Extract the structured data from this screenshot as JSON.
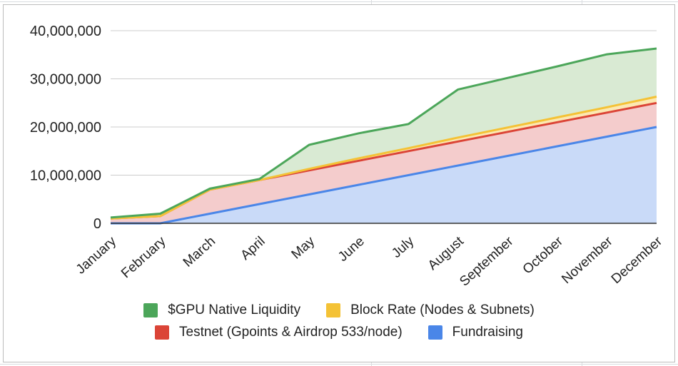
{
  "chart_data": {
    "type": "area",
    "stacked": true,
    "categories": [
      "January",
      "February",
      "March",
      "April",
      "May",
      "June",
      "July",
      "August",
      "September",
      "October",
      "November",
      "December"
    ],
    "yticks": [
      "0",
      "10,000,000",
      "20,000,000",
      "30,000,000",
      "40,000,000"
    ],
    "ylim": [
      0,
      40000000
    ],
    "grid": true,
    "legend_position": "bottom",
    "series": [
      {
        "name": "Fundraising",
        "color": "#4a86e8",
        "fill": "#c9daf8",
        "values": [
          0,
          0,
          2000000,
          4000000,
          6000000,
          8000000,
          10000000,
          12000000,
          14000000,
          16000000,
          18000000,
          20000000
        ]
      },
      {
        "name": "Testnet (Gpoints & Airdrop 533/node)",
        "color": "#db4437",
        "fill": "#f4cccc",
        "values": [
          1000000,
          1500000,
          5000000,
          5000000,
          5000000,
          5000000,
          5000000,
          5000000,
          5000000,
          5000000,
          5000000,
          5000000
        ]
      },
      {
        "name": "Block Rate (Nodes & Subnets)",
        "color": "#f4c236",
        "fill": "#fce8b2",
        "values": [
          0,
          0,
          0,
          0,
          300000,
          500000,
          600000,
          800000,
          900000,
          1000000,
          1100000,
          1300000
        ]
      },
      {
        "name": "$GPU Native Liquidity",
        "color": "#4ca65a",
        "fill": "#d9ead3",
        "values": [
          200000,
          500000,
          200000,
          200000,
          5000000,
          5200000,
          5000000,
          10000000,
          10300000,
          10600000,
          11000000,
          10000000
        ]
      }
    ]
  },
  "legend": {
    "row1": [
      {
        "label": "$GPU Native Liquidity",
        "color": "#4ca65a"
      },
      {
        "label": "Block Rate (Nodes & Subnets)",
        "color": "#f4c236"
      }
    ],
    "row2": [
      {
        "label": "Testnet (Gpoints & Airdrop 533/node)",
        "color": "#db4437"
      },
      {
        "label": "Fundraising",
        "color": "#4a86e8"
      }
    ]
  }
}
